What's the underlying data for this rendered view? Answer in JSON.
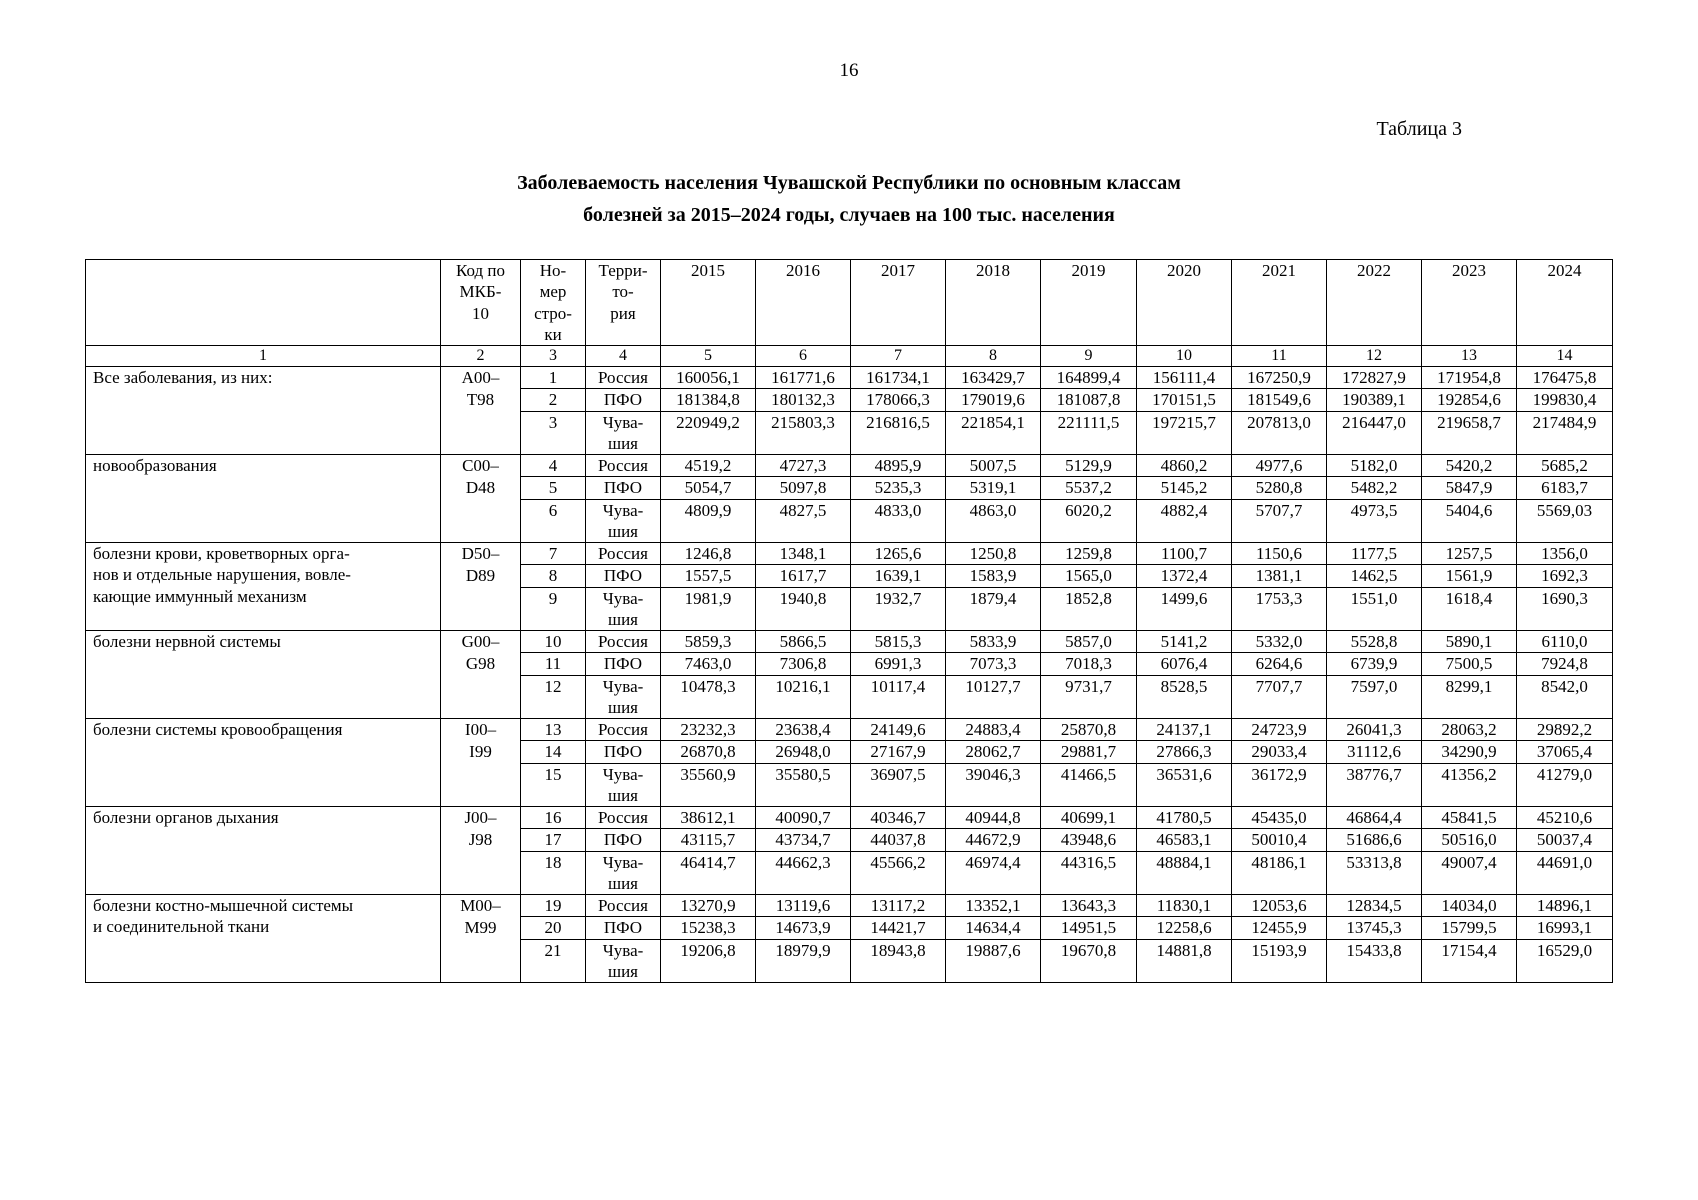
{
  "page": {
    "number": "16",
    "table_label": "Таблица 3",
    "title_line1": "Заболеваемость населения Чувашской Республики по основным классам",
    "title_line2": "болезней за 2015–2024 годы, случаев на 100 тыс. населения"
  },
  "table": {
    "headers": {
      "name": "",
      "code": "Код по\nМКБ-\n10",
      "row_num": "Но-\nмер\nстро-\nки",
      "territory": "Терри-\nто-\nрия",
      "years": [
        "2015",
        "2016",
        "2017",
        "2018",
        "2019",
        "2020",
        "2021",
        "2022",
        "2023",
        "2024"
      ]
    },
    "column_numbers": [
      "1",
      "2",
      "3",
      "4",
      "5",
      "6",
      "7",
      "8",
      "9",
      "10",
      "11",
      "12",
      "13",
      "14"
    ],
    "groups": [
      {
        "name": "Все заболевания, из них:",
        "code": "A00–\nT98",
        "rows": [
          {
            "num": "1",
            "territory": "Россия",
            "values": [
              "160056,1",
              "161771,6",
              "161734,1",
              "163429,7",
              "164899,4",
              "156111,4",
              "167250,9",
              "172827,9",
              "171954,8",
              "176475,8"
            ]
          },
          {
            "num": "2",
            "territory": "ПФО",
            "values": [
              "181384,8",
              "180132,3",
              "178066,3",
              "179019,6",
              "181087,8",
              "170151,5",
              "181549,6",
              "190389,1",
              "192854,6",
              "199830,4"
            ]
          },
          {
            "num": "3",
            "territory": "Чува-\nшия",
            "values": [
              "220949,2",
              "215803,3",
              "216816,5",
              "221854,1",
              "221111,5",
              "197215,7",
              "207813,0",
              "216447,0",
              "219658,7",
              "217484,9"
            ]
          }
        ]
      },
      {
        "name": "новообразования",
        "code": "C00–\nD48",
        "rows": [
          {
            "num": "4",
            "territory": "Россия",
            "values": [
              "4519,2",
              "4727,3",
              "4895,9",
              "5007,5",
              "5129,9",
              "4860,2",
              "4977,6",
              "5182,0",
              "5420,2",
              "5685,2"
            ]
          },
          {
            "num": "5",
            "territory": "ПФО",
            "values": [
              "5054,7",
              "5097,8",
              "5235,3",
              "5319,1",
              "5537,2",
              "5145,2",
              "5280,8",
              "5482,2",
              "5847,9",
              "6183,7"
            ]
          },
          {
            "num": "6",
            "territory": "Чува-\nшия",
            "values": [
              "4809,9",
              "4827,5",
              "4833,0",
              "4863,0",
              "6020,2",
              "4882,4",
              "5707,7",
              "4973,5",
              "5404,6",
              "5569,03"
            ]
          }
        ]
      },
      {
        "name": "болезни крови, кроветворных орга-\nнов и отдельные нарушения, вовле-\nкающие иммунный механизм",
        "code": "D50–\nD89",
        "rows": [
          {
            "num": "7",
            "territory": "Россия",
            "values": [
              "1246,8",
              "1348,1",
              "1265,6",
              "1250,8",
              "1259,8",
              "1100,7",
              "1150,6",
              "1177,5",
              "1257,5",
              "1356,0"
            ]
          },
          {
            "num": "8",
            "territory": "ПФО",
            "values": [
              "1557,5",
              "1617,7",
              "1639,1",
              "1583,9",
              "1565,0",
              "1372,4",
              "1381,1",
              "1462,5",
              "1561,9",
              "1692,3"
            ]
          },
          {
            "num": "9",
            "territory": "Чува-\nшия",
            "values": [
              "1981,9",
              "1940,8",
              "1932,7",
              "1879,4",
              "1852,8",
              "1499,6",
              "1753,3",
              "1551,0",
              "1618,4",
              "1690,3"
            ]
          }
        ]
      },
      {
        "name": "болезни нервной системы",
        "code": "G00–\nG98",
        "rows": [
          {
            "num": "10",
            "territory": "Россия",
            "values": [
              "5859,3",
              "5866,5",
              "5815,3",
              "5833,9",
              "5857,0",
              "5141,2",
              "5332,0",
              "5528,8",
              "5890,1",
              "6110,0"
            ]
          },
          {
            "num": "11",
            "territory": "ПФО",
            "values": [
              "7463,0",
              "7306,8",
              "6991,3",
              "7073,3",
              "7018,3",
              "6076,4",
              "6264,6",
              "6739,9",
              "7500,5",
              "7924,8"
            ]
          },
          {
            "num": "12",
            "territory": "Чува-\nшия",
            "values": [
              "10478,3",
              "10216,1",
              "10117,4",
              "10127,7",
              "9731,7",
              "8528,5",
              "7707,7",
              "7597,0",
              "8299,1",
              "8542,0"
            ]
          }
        ]
      },
      {
        "name": "болезни системы кровообращения",
        "code": "I00–\nI99",
        "rows": [
          {
            "num": "13",
            "territory": "Россия",
            "values": [
              "23232,3",
              "23638,4",
              "24149,6",
              "24883,4",
              "25870,8",
              "24137,1",
              "24723,9",
              "26041,3",
              "28063,2",
              "29892,2"
            ]
          },
          {
            "num": "14",
            "territory": "ПФО",
            "values": [
              "26870,8",
              "26948,0",
              "27167,9",
              "28062,7",
              "29881,7",
              "27866,3",
              "29033,4",
              "31112,6",
              "34290,9",
              "37065,4"
            ]
          },
          {
            "num": "15",
            "territory": "Чува-\nшия",
            "values": [
              "35560,9",
              "35580,5",
              "36907,5",
              "39046,3",
              "41466,5",
              "36531,6",
              "36172,9",
              "38776,7",
              "41356,2",
              "41279,0"
            ]
          }
        ]
      },
      {
        "name": "болезни органов дыхания",
        "code": "J00–\nJ98",
        "rows": [
          {
            "num": "16",
            "territory": "Россия",
            "values": [
              "38612,1",
              "40090,7",
              "40346,7",
              "40944,8",
              "40699,1",
              "41780,5",
              "45435,0",
              "46864,4",
              "45841,5",
              "45210,6"
            ]
          },
          {
            "num": "17",
            "territory": "ПФО",
            "values": [
              "43115,7",
              "43734,7",
              "44037,8",
              "44672,9",
              "43948,6",
              "46583,1",
              "50010,4",
              "51686,6",
              "50516,0",
              "50037,4"
            ]
          },
          {
            "num": "18",
            "territory": "Чува-\nшия",
            "values": [
              "46414,7",
              "44662,3",
              "45566,2",
              "46974,4",
              "44316,5",
              "48884,1",
              "48186,1",
              "53313,8",
              "49007,4",
              "44691,0"
            ]
          }
        ]
      },
      {
        "name": "болезни костно-мышечной системы\nи соединительной ткани",
        "code": "M00–\nM99",
        "rows": [
          {
            "num": "19",
            "territory": "Россия",
            "values": [
              "13270,9",
              "13119,6",
              "13117,2",
              "13352,1",
              "13643,3",
              "11830,1",
              "12053,6",
              "12834,5",
              "14034,0",
              "14896,1"
            ]
          },
          {
            "num": "20",
            "territory": "ПФО",
            "values": [
              "15238,3",
              "14673,9",
              "14421,7",
              "14634,4",
              "14951,5",
              "12258,6",
              "12455,9",
              "13745,3",
              "15799,5",
              "16993,1"
            ]
          },
          {
            "num": "21",
            "territory": "Чува-\nшия",
            "values": [
              "19206,8",
              "18979,9",
              "18943,8",
              "19887,6",
              "19670,8",
              "14881,8",
              "15193,9",
              "15433,8",
              "17154,4",
              "16529,0"
            ]
          }
        ]
      }
    ]
  }
}
